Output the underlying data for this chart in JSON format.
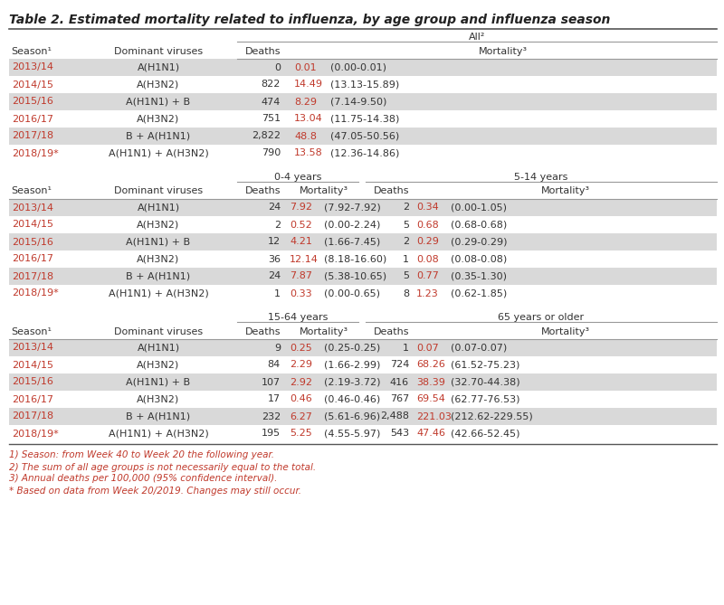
{
  "title": "Table 2. Estimated mortality related to influenza, by age group and influenza season",
  "title_color": "#222222",
  "background_color": "#ffffff",
  "row_alt_color": "#d9d9d9",
  "row_white_color": "#ffffff",
  "text_color": "#333333",
  "red_color": "#c0392b",
  "line_color": "#999999",
  "section1_header_group": "All²",
  "section1_col_headers": [
    "Season¹",
    "Dominant viruses",
    "Deaths",
    "Mortality³"
  ],
  "section1_rows": [
    [
      "2013/14",
      "A(H1N1)",
      "0",
      "0.01",
      "(0.00-0.01)"
    ],
    [
      "2014/15",
      "A(H3N2)",
      "822",
      "14.49",
      "(13.13-15.89)"
    ],
    [
      "2015/16",
      "A(H1N1) + B",
      "474",
      "8.29",
      "(7.14-9.50)"
    ],
    [
      "2016/17",
      "A(H3N2)",
      "751",
      "13.04",
      "(11.75-14.38)"
    ],
    [
      "2017/18",
      "B + A(H1N1)",
      "2,822",
      "48.8",
      "(47.05-50.56)"
    ],
    [
      "2018/19*",
      "A(H1N1) + A(H3N2)",
      "790",
      "13.58",
      "(12.36-14.86)"
    ]
  ],
  "section2_header_group1": "0-4 years",
  "section2_header_group2": "5-14 years",
  "section2_rows": [
    [
      "2013/14",
      "A(H1N1)",
      "24",
      "7.92",
      "(7.92-7.92)",
      "2",
      "0.34",
      "(0.00-1.05)"
    ],
    [
      "2014/15",
      "A(H3N2)",
      "2",
      "0.52",
      "(0.00-2.24)",
      "5",
      "0.68",
      "(0.68-0.68)"
    ],
    [
      "2015/16",
      "A(H1N1) + B",
      "12",
      "4.21",
      "(1.66-7.45)",
      "2",
      "0.29",
      "(0.29-0.29)"
    ],
    [
      "2016/17",
      "A(H3N2)",
      "36",
      "12.14",
      "(8.18-16.60)",
      "1",
      "0.08",
      "(0.08-0.08)"
    ],
    [
      "2017/18",
      "B + A(H1N1)",
      "24",
      "7.87",
      "(5.38-10.65)",
      "5",
      "0.77",
      "(0.35-1.30)"
    ],
    [
      "2018/19*",
      "A(H1N1) + A(H3N2)",
      "1",
      "0.33",
      "(0.00-0.65)",
      "8",
      "1.23",
      "(0.62-1.85)"
    ]
  ],
  "section3_header_group1": "15-64 years",
  "section3_header_group2": "65 years or older",
  "section3_rows": [
    [
      "2013/14",
      "A(H1N1)",
      "9",
      "0.25",
      "(0.25-0.25)",
      "1",
      "0.07",
      "(0.07-0.07)"
    ],
    [
      "2014/15",
      "A(H3N2)",
      "84",
      "2.29",
      "(1.66-2.99)",
      "724",
      "68.26",
      "(61.52-75.23)"
    ],
    [
      "2015/16",
      "A(H1N1) + B",
      "107",
      "2.92",
      "(2.19-3.72)",
      "416",
      "38.39",
      "(32.70-44.38)"
    ],
    [
      "2016/17",
      "A(H3N2)",
      "17",
      "0.46",
      "(0.46-0.46)",
      "767",
      "69.54",
      "(62.77-76.53)"
    ],
    [
      "2017/18",
      "B + A(H1N1)",
      "232",
      "6.27",
      "(5.61-6.96)",
      "2,488",
      "221.03",
      "(212.62-229.55)"
    ],
    [
      "2018/19*",
      "A(H1N1) + A(H3N2)",
      "195",
      "5.25",
      "(4.55-5.97)",
      "543",
      "47.46",
      "(42.66-52.45)"
    ]
  ],
  "footnotes": [
    "1) Season: from Week 40 to Week 20 the following year.",
    "2) The sum of all age groups is not necessarily equal to the total.",
    "3) Annual deaths per 100,000 (95% confidence interval).",
    "* Based on data from Week 20/2019. Changes may still occur."
  ]
}
